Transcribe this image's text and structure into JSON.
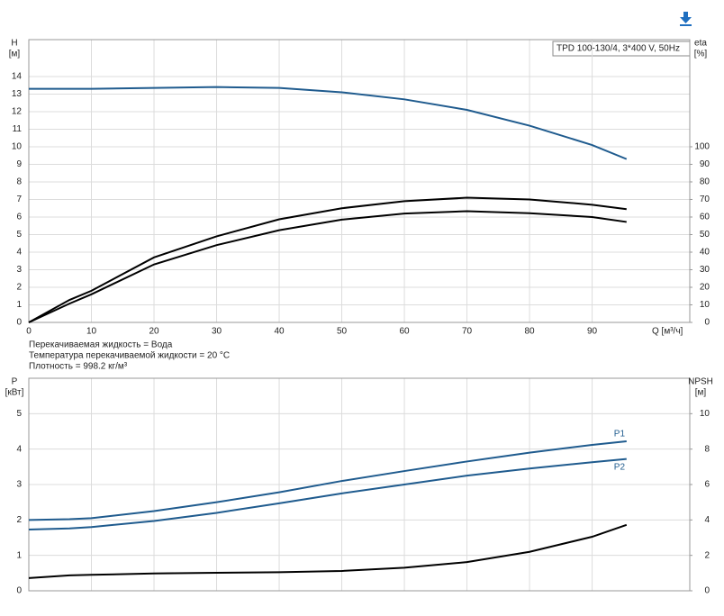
{
  "chart_data": [
    {
      "type": "line",
      "title": "TPD 100-130/4, 3*400 V, 50Hz",
      "y_label": "H",
      "y_unit": "[м]",
      "y2_label": "eta",
      "y2_unit": "[%]",
      "x_label": "Q [м³/ч]",
      "notes": [
        "Перекачиваемая жидкость = Вода",
        "Температура перекачиваемой жидкости = 20 °C",
        "Плотность = 998.2 кг/м³"
      ],
      "grid": true,
      "show_xtick_labels": true,
      "xlim": [
        0,
        105.6
      ],
      "xticks": [
        0,
        10,
        20,
        30,
        40,
        50,
        60,
        70,
        80,
        90
      ],
      "ylim": [
        0,
        16.1
      ],
      "yticks": [
        0,
        1,
        2,
        3,
        4,
        5,
        6,
        7,
        8,
        9,
        10,
        11,
        12,
        13,
        14
      ],
      "y2lim": [
        0,
        161
      ],
      "y2ticks": [
        0,
        10,
        20,
        30,
        40,
        50,
        60,
        70,
        80,
        90,
        100
      ],
      "x": [
        0,
        6.5,
        10,
        20,
        30,
        40,
        50,
        60,
        70,
        80,
        90,
        95.5
      ],
      "series": [
        {
          "color": "#1f5b8e",
          "values": [
            13.3,
            13.3,
            13.3,
            13.35,
            13.4,
            13.35,
            13.1,
            12.7,
            12.1,
            11.2,
            10.1,
            9.3
          ]
        },
        {
          "color": "#000000",
          "axis": "y2",
          "values": [
            0,
            12.8,
            18,
            37,
            49,
            58.7,
            65,
            69,
            71,
            70,
            67,
            64.5
          ]
        },
        {
          "color": "#000000",
          "axis": "y2",
          "values": [
            0,
            10.7,
            16,
            33,
            44,
            52.5,
            58.5,
            62,
            63.3,
            62.2,
            60,
            57.2
          ]
        }
      ]
    },
    {
      "type": "line",
      "y_label": "P",
      "y_unit": "[кВт]",
      "y2_label": "NPSH",
      "y2_unit": "[м]",
      "grid": true,
      "show_xtick_labels": false,
      "xlim": [
        0,
        105.6
      ],
      "xticks": [
        0,
        10,
        20,
        30,
        40,
        50,
        60,
        70,
        80,
        90
      ],
      "ylim": [
        0,
        6
      ],
      "yticks": [
        0,
        1,
        2,
        3,
        4,
        5
      ],
      "y2lim": [
        0,
        12
      ],
      "y2ticks": [
        0,
        2,
        4,
        6,
        8,
        10
      ],
      "x": [
        0,
        6.5,
        10,
        20,
        30,
        40,
        50,
        60,
        70,
        80,
        90,
        95.5
      ],
      "series": [
        {
          "name": "P1",
          "color": "#1f5b8e",
          "values": [
            2.0,
            2.02,
            2.05,
            2.25,
            2.5,
            2.78,
            3.1,
            3.38,
            3.65,
            3.9,
            4.12,
            4.22
          ]
        },
        {
          "name": "P2",
          "color": "#1f5b8e",
          "values": [
            1.73,
            1.76,
            1.8,
            1.97,
            2.2,
            2.47,
            2.75,
            3.0,
            3.25,
            3.45,
            3.63,
            3.72
          ]
        },
        {
          "color": "#000000",
          "axis": "y2",
          "values": [
            0.72,
            0.87,
            0.9,
            0.98,
            1.02,
            1.05,
            1.12,
            1.3,
            1.62,
            2.2,
            3.05,
            3.72
          ]
        }
      ]
    }
  ]
}
